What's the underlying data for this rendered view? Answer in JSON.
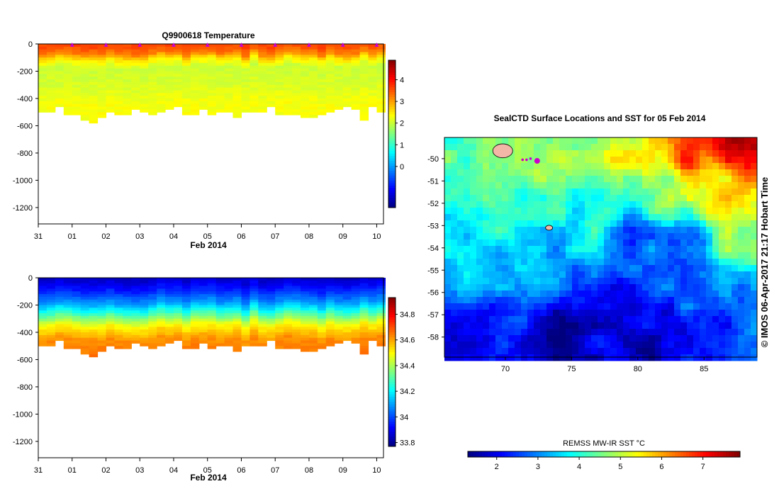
{
  "colors": {
    "jet": [
      "#00007f",
      "#0000ff",
      "#007fff",
      "#00ffff",
      "#7fff7f",
      "#ffff00",
      "#ff7f00",
      "#ff0000",
      "#7f0000"
    ],
    "marker": "#cc00cc",
    "seal_patch": "#f2b7a6"
  },
  "chart_data": [
    {
      "type": "heatmap",
      "title": "Q9900618  Temperature",
      "xlabel": "Feb 2014",
      "x_ticks": [
        "31",
        "01",
        "02",
        "03",
        "04",
        "05",
        "06",
        "07",
        "08",
        "09",
        "10"
      ],
      "x_range_days": [
        0,
        10.2
      ],
      "y_ticks": [
        "0",
        "-200",
        "-400",
        "-600",
        "-800",
        "-1000",
        "-1200"
      ],
      "y_tick_values": [
        0,
        -200,
        -400,
        -600,
        -800,
        -1000,
        -1200
      ],
      "ylim": [
        -1320,
        0
      ],
      "colorbar_ticks": [
        "4",
        "3",
        "2",
        "1",
        "0"
      ],
      "colorbar_tick_values": [
        4,
        3,
        2,
        1,
        0
      ],
      "colorbar_range": [
        -1.9,
        4.9
      ],
      "profile_day_offsets": [
        0,
        0.25,
        0.5,
        0.75,
        1,
        1.25,
        1.5,
        1.75,
        2,
        2.25,
        2.5,
        2.75,
        3,
        3.25,
        3.5,
        3.75,
        4,
        4.25,
        4.5,
        4.75,
        5,
        5.25,
        5.5,
        5.75,
        6,
        6.25,
        6.5,
        6.75,
        7,
        7.25,
        7.5,
        7.75,
        8,
        8.25,
        8.5,
        8.75,
        9,
        9.25,
        9.5,
        9.75,
        10
      ],
      "profile_max_depths": [
        490,
        500,
        460,
        510,
        510,
        560,
        580,
        530,
        500,
        520,
        510,
        480,
        490,
        520,
        500,
        470,
        460,
        520,
        520,
        470,
        520,
        500,
        490,
        530,
        500,
        500,
        500,
        460,
        510,
        510,
        510,
        530,
        540,
        520,
        500,
        480,
        460,
        470,
        560,
        450,
        500
      ],
      "layers": [
        {
          "depth": 0,
          "value": 3.6
        },
        {
          "depth": 60,
          "value": 3.2
        },
        {
          "depth": 100,
          "value": 2.5
        },
        {
          "depth": 160,
          "value": 2.0
        },
        {
          "depth": 300,
          "value": 2.1
        },
        {
          "depth": 420,
          "value": 2.3
        },
        {
          "depth": 580,
          "value": 2.3
        }
      ],
      "surface_markers": "triangles at top axis on each day tick"
    },
    {
      "type": "heatmap",
      "title": "",
      "xlabel": "Feb 2014",
      "x_ticks": [
        "31",
        "01",
        "02",
        "03",
        "04",
        "05",
        "06",
        "07",
        "08",
        "09",
        "10"
      ],
      "x_range_days": [
        0,
        10.2
      ],
      "y_ticks": [
        "0",
        "-200",
        "-400",
        "-600",
        "-800",
        "-1000",
        "-1200"
      ],
      "y_tick_values": [
        0,
        -200,
        -400,
        -600,
        -800,
        -1000,
        -1200
      ],
      "ylim": [
        -1320,
        0
      ],
      "colorbar_ticks": [
        "34.8",
        "34.6",
        "34.4",
        "34.2",
        "34",
        "33.8"
      ],
      "colorbar_tick_values": [
        34.8,
        34.6,
        34.4,
        34.2,
        34.0,
        33.8
      ],
      "colorbar_range": [
        33.77,
        34.93
      ],
      "layers": [
        {
          "depth": 0,
          "value": 33.85
        },
        {
          "depth": 80,
          "value": 33.95
        },
        {
          "depth": 180,
          "value": 34.1
        },
        {
          "depth": 260,
          "value": 34.3
        },
        {
          "depth": 340,
          "value": 34.5
        },
        {
          "depth": 440,
          "value": 34.62
        },
        {
          "depth": 580,
          "value": 34.66
        }
      ]
    },
    {
      "type": "heatmap",
      "title": "SealCTD Surface Locations and SST for 05 Feb 2014",
      "x_ticks": [
        "70",
        "75",
        "80",
        "85"
      ],
      "x_tick_values": [
        70,
        75,
        80,
        85
      ],
      "xlim": [
        65.4,
        89.0
      ],
      "y_ticks": [
        "-50",
        "-51",
        "-52",
        "-53",
        "-54",
        "-55",
        "-56",
        "-57",
        "-58"
      ],
      "y_tick_values": [
        -50,
        -51,
        -52,
        -53,
        -54,
        -55,
        -56,
        -57,
        -58
      ],
      "ylim": [
        -58.9,
        -49.05
      ],
      "colorbar_label": "REMSS MW-IR SST °C",
      "colorbar_ticks": [
        "2",
        "3",
        "4",
        "5",
        "6",
        "7"
      ],
      "colorbar_tick_values": [
        2,
        3,
        4,
        5,
        6,
        7
      ],
      "colorbar_range": [
        1.3,
        7.9
      ],
      "sst_anchors": [
        {
          "lon": 67,
          "lat": -49.4,
          "sst": 4.4
        },
        {
          "lon": 73,
          "lat": -50.3,
          "sst": 4.6
        },
        {
          "lon": 80,
          "lat": -49.5,
          "sst": 5.4
        },
        {
          "lon": 84,
          "lat": -49.6,
          "sst": 6.7
        },
        {
          "lon": 88.2,
          "lat": -49.4,
          "sst": 7.6
        },
        {
          "lon": 86,
          "lat": -51.3,
          "sst": 5.8
        },
        {
          "lon": 87.5,
          "lat": -53.5,
          "sst": 4.8
        },
        {
          "lon": 82,
          "lat": -51.6,
          "sst": 4.5
        },
        {
          "lon": 70,
          "lat": -52.2,
          "sst": 4.3
        },
        {
          "lon": 76,
          "lat": -52.5,
          "sst": 3.9
        },
        {
          "lon": 80,
          "lat": -53.6,
          "sst": 2.7
        },
        {
          "lon": 84,
          "lat": -54.0,
          "sst": 2.5
        },
        {
          "lon": 67,
          "lat": -55.0,
          "sst": 3.4
        },
        {
          "lon": 73,
          "lat": -55.2,
          "sst": 3.0
        },
        {
          "lon": 78,
          "lat": -56.5,
          "sst": 2.1
        },
        {
          "lon": 68,
          "lat": -57.8,
          "sst": 2.0
        },
        {
          "lon": 74,
          "lat": -58.0,
          "sst": 1.6
        },
        {
          "lon": 81,
          "lat": -58.4,
          "sst": 1.7
        },
        {
          "lon": 86,
          "lat": -57.8,
          "sst": 2.3
        },
        {
          "lon": 88.5,
          "lat": -56.5,
          "sst": 3.0
        }
      ],
      "seal_locations": [
        {
          "lon": 71.3,
          "lat": -50.05
        },
        {
          "lon": 71.6,
          "lat": -50.05
        },
        {
          "lon": 71.9,
          "lat": -50.0
        },
        {
          "lon": 72.4,
          "lat": -50.1
        }
      ],
      "land_patches": [
        {
          "lon": 69.8,
          "lat": -49.65
        },
        {
          "lon": 73.3,
          "lat": -53.1
        }
      ]
    }
  ],
  "credit": "© IMOS 06-Apr-2017 21:17 Hobart Time"
}
